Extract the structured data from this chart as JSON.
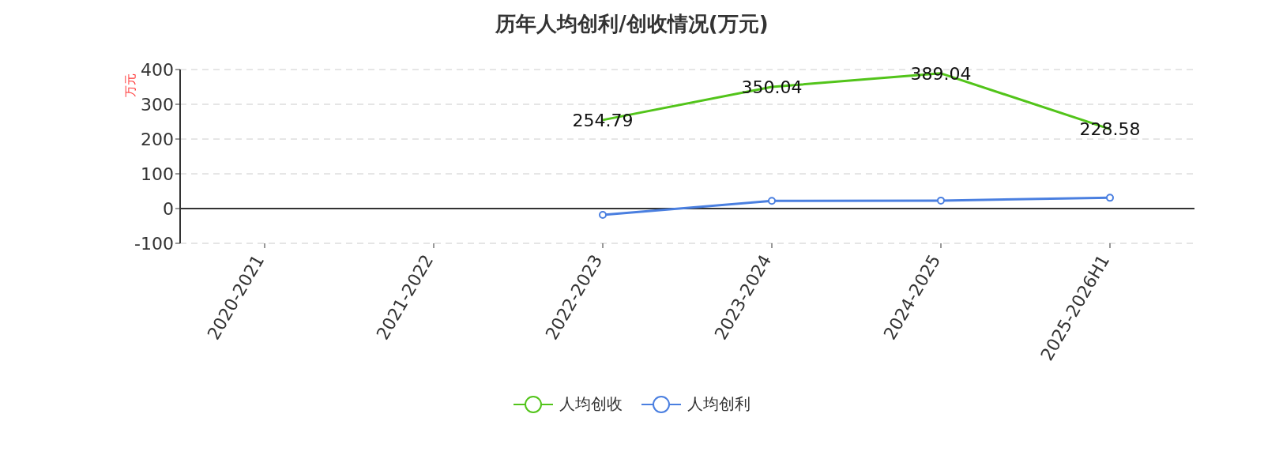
{
  "chart_data": {
    "type": "line",
    "title": "历年人均创利/创收情况(万元)",
    "ylabel": "万元",
    "categories": [
      "2020-2021",
      "2021-2022",
      "2022-2023",
      "2023-2024",
      "2024-2025",
      "2025-2026H1"
    ],
    "series": [
      {
        "name": "人均创收",
        "color": "#52c41a",
        "values": [
          null,
          null,
          254.79,
          350.04,
          389.04,
          228.58
        ],
        "value_labels": [
          null,
          null,
          "254.79",
          "350.04",
          "389.04",
          "228.58"
        ],
        "marker": "none"
      },
      {
        "name": "人均创利",
        "color": "#4a7fe0",
        "values": [
          null,
          null,
          -18,
          22,
          23,
          31
        ],
        "marker": "circle"
      }
    ],
    "ylim": [
      -100,
      400
    ],
    "yticks": [
      -100,
      0,
      100,
      200,
      300,
      400
    ],
    "grid": "y",
    "line_style": "solid",
    "legend": "bottom"
  }
}
